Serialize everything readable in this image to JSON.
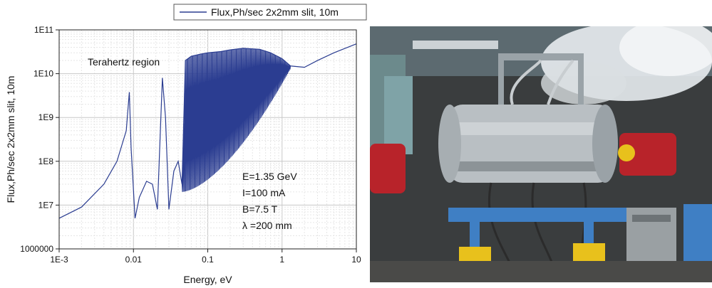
{
  "chart_data": {
    "type": "line",
    "xlabel": "Energy, eV",
    "ylabel": "Flux,Ph/sec 2x2mm slit, 10m",
    "x_scale": "log",
    "y_scale": "log",
    "xlim": [
      0.001,
      10
    ],
    "ylim": [
      1000000,
      100000000000
    ],
    "x_tick_labels": [
      "1E-3",
      "0.01",
      "0.1",
      "1",
      "10"
    ],
    "y_tick_labels": [
      "1000000",
      "1E7",
      "1E8",
      "1E9",
      "1E10",
      "1E11"
    ],
    "grid": true,
    "legend_position": "top",
    "series": [
      {
        "name": "Flux,Ph/sec 2x2mm slit, 10m",
        "color": "#2b3d91",
        "x": [
          0.001,
          0.002,
          0.004,
          0.006,
          0.008,
          0.0088,
          0.0093,
          0.0105,
          0.012,
          0.015,
          0.018,
          0.021,
          0.0245,
          0.027,
          0.03,
          0.035,
          0.04,
          0.045,
          0.05,
          0.06,
          0.08,
          0.1,
          0.15,
          0.2,
          0.3,
          0.5,
          0.7,
          1,
          1.3,
          2,
          3,
          5,
          10
        ],
        "y": [
          5000000,
          9000000,
          30000000,
          100000000,
          500000000,
          3800000000,
          200000000,
          5000000,
          15000000,
          35000000,
          30000000,
          8000000,
          8000000000,
          1000000000,
          8000000,
          60000000,
          100000000,
          30000000,
          20000000000,
          25000000000,
          28000000000,
          30000000000,
          32000000000,
          35000000000,
          38000000000,
          36000000000,
          30000000000,
          22000000000,
          15000000000,
          14000000000,
          20000000000,
          30000000000,
          48000000000
        ]
      }
    ],
    "annotations": [
      "Terahertz region",
      "E=1.35 GeV",
      "I=100 mA",
      "B=7.5 T",
      "λ =200 mm"
    ]
  },
  "photo": {
    "colors": {
      "background": "#3a3d3e",
      "steel": "#b9bfc3",
      "blue_frame": "#3f7fc4",
      "yellow": "#e8c11c",
      "red_magnet": "#b8232a",
      "steam": "#e8ecef"
    }
  }
}
